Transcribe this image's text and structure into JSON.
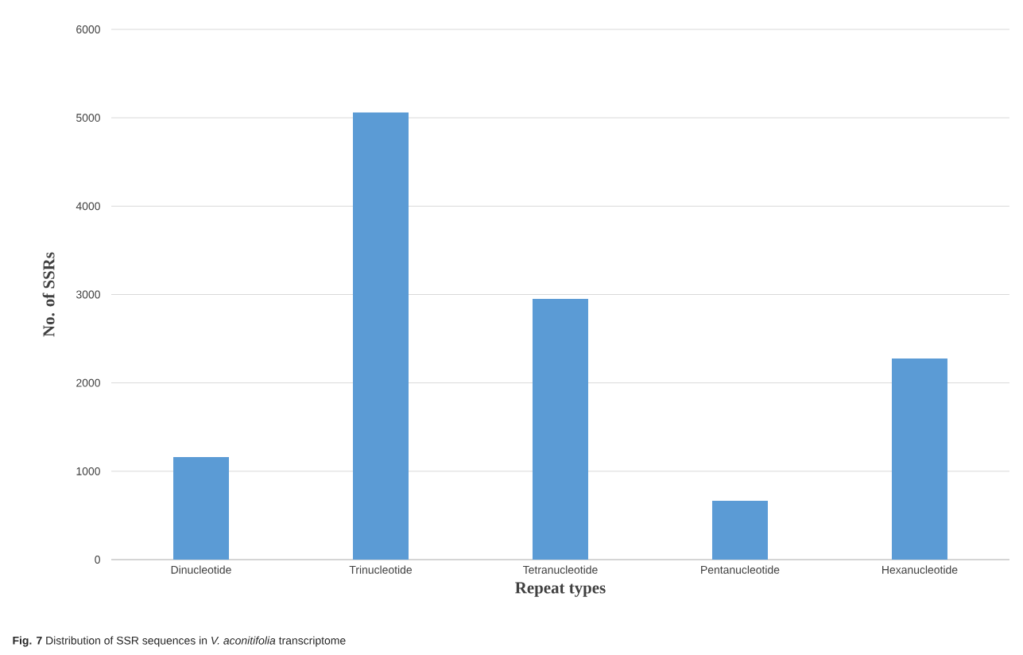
{
  "chart_data": {
    "type": "bar",
    "xlabel": "Repeat types",
    "ylabel": "No. of SSRs",
    "categories": [
      "Dinucleotide",
      "Trinucleotide",
      "Tetranucleotide",
      "Pentanucleotide",
      "Hexanucleotide"
    ],
    "values": [
      1160,
      5060,
      2950,
      665,
      2275
    ],
    "color": "#5b9bd5",
    "ylim": [
      0,
      6000
    ],
    "yticks": [
      0,
      1000,
      2000,
      3000,
      4000,
      5000,
      6000
    ],
    "grid": "y",
    "annotations": [
      "**Fig. 7**  Distribution of SSR sequences in *V. aconitifolia* transcriptome"
    ]
  }
}
